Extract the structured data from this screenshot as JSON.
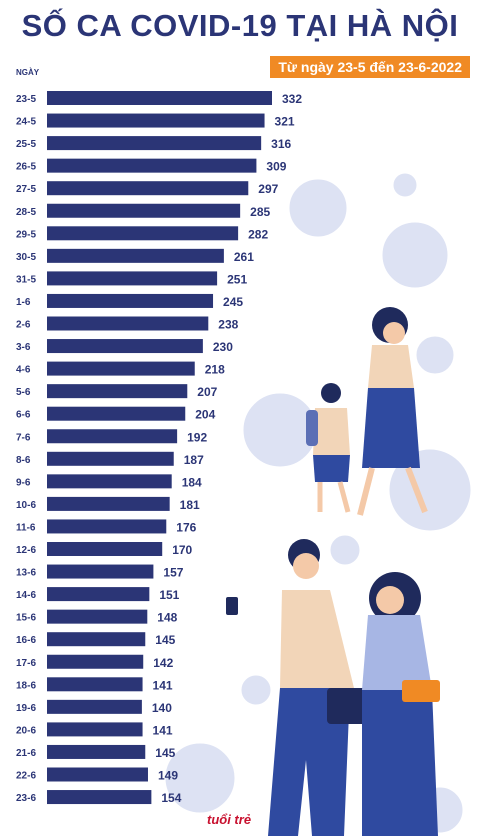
{
  "title": "SỐ CA COVID-19 TẠI HÀ NỘI",
  "subtitle": "Từ ngày 23-5 đến 23-6-2022",
  "logo_text": "tuổi trẻ",
  "colors": {
    "bar": "#2b3576",
    "title": "#2b3576",
    "accent": "#f08a24",
    "decor": "#dde2f3"
  },
  "chart_data": {
    "type": "bar",
    "orientation": "horizontal",
    "title": "SỐ CA COVID-19 TẠI HÀ NỘI",
    "subtitle": "Từ ngày 23-5 đến 23-6-2022",
    "ylabel": "NGÀY",
    "categories": [
      "23-5",
      "24-5",
      "25-5",
      "26-5",
      "27-5",
      "28-5",
      "29-5",
      "30-5",
      "31-5",
      "1-6",
      "2-6",
      "3-6",
      "4-6",
      "5-6",
      "6-6",
      "7-6",
      "8-6",
      "9-6",
      "10-6",
      "11-6",
      "12-6",
      "13-6",
      "14-6",
      "15-6",
      "16-6",
      "17-6",
      "18-6",
      "19-6",
      "20-6",
      "21-6",
      "22-6",
      "23-6"
    ],
    "values": [
      332,
      321,
      316,
      309,
      297,
      285,
      282,
      261,
      251,
      245,
      238,
      230,
      218,
      207,
      204,
      192,
      187,
      184,
      181,
      176,
      170,
      157,
      151,
      148,
      145,
      142,
      141,
      140,
      141,
      145,
      149,
      154
    ],
    "xlim": [
      0,
      332
    ],
    "grid": false,
    "data_labels": true
  }
}
